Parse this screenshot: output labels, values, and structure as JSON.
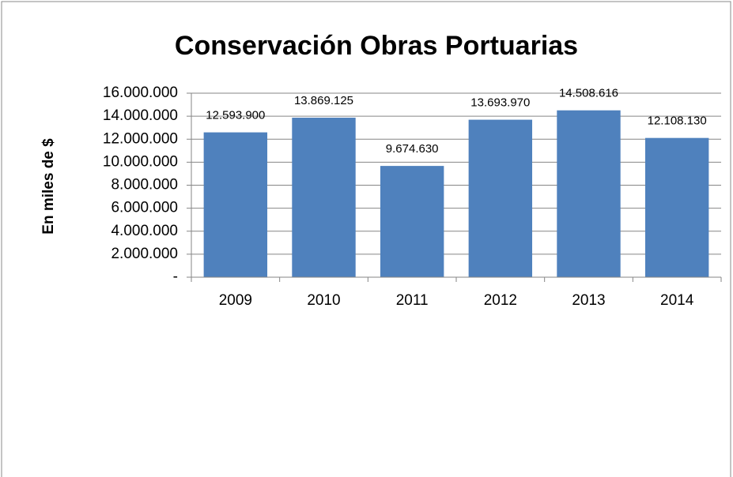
{
  "chart_data": {
    "type": "bar",
    "title": "Conservación Obras Portuarias",
    "y_label": "En miles de $",
    "categories": [
      "2009",
      "2010",
      "2011",
      "2012",
      "2013",
      "2014"
    ],
    "values": [
      12593900,
      13869125,
      9674630,
      13693970,
      14508616,
      12108130
    ],
    "value_labels": [
      "12.593.900",
      "13.869.125",
      "9.674.630",
      "13.693.970",
      "14.508.616",
      "12.108.130"
    ],
    "color": "#4f81bd",
    "ylim": [
      0,
      16000000
    ],
    "yticks": [
      {
        "value": 0,
        "label": "-"
      },
      {
        "value": 2000000,
        "label": "2.000.000"
      },
      {
        "value": 4000000,
        "label": "4.000.000"
      },
      {
        "value": 6000000,
        "label": "6.000.000"
      },
      {
        "value": 8000000,
        "label": "8.000.000"
      },
      {
        "value": 10000000,
        "label": "10.000.000"
      },
      {
        "value": 12000000,
        "label": "12.000.000"
      },
      {
        "value": 14000000,
        "label": "14.000.000"
      },
      {
        "value": 16000000,
        "label": "16.000.000"
      }
    ],
    "grid": true
  }
}
